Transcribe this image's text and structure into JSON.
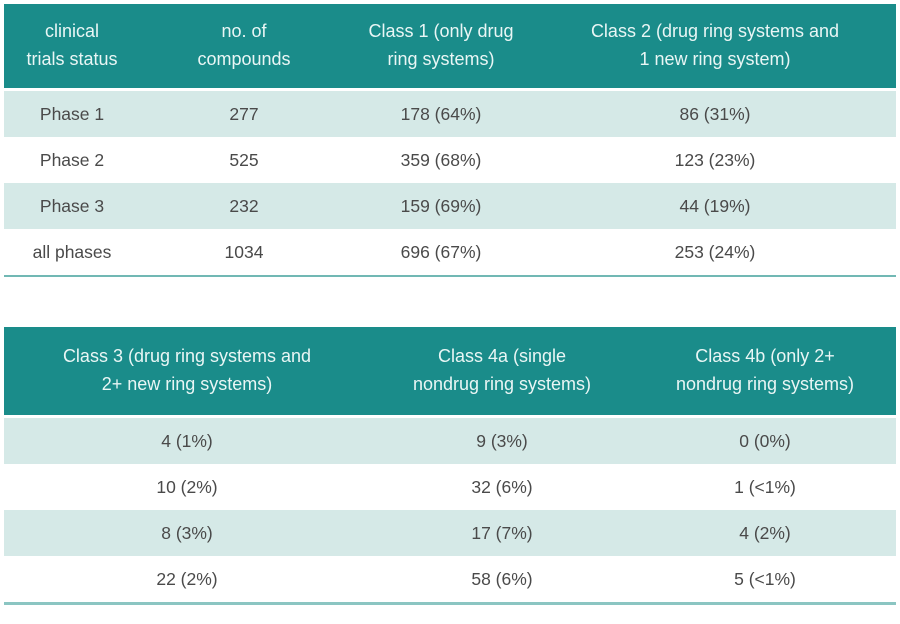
{
  "colors": {
    "header_background": "#1A8C8A",
    "header_text": "#E9F6F5",
    "row_alt_background": "#D5E9E7",
    "row_background": "#FFFFFF",
    "body_text": "#4A4A4A",
    "table1_bottom_border": "#71B8B4",
    "table2_bottom_border": "#8BC5C2"
  },
  "table1": {
    "headers": [
      "clinical\ntrials status",
      "no. of\ncompounds",
      "Class 1 (only drug\nring systems)",
      "Class 2 (drug ring systems and\n1 new ring system)"
    ],
    "rows": [
      [
        "Phase 1",
        "277",
        "178 (64%)",
        "86 (31%)"
      ],
      [
        "Phase 2",
        "525",
        "359 (68%)",
        "123 (23%)"
      ],
      [
        "Phase 3",
        "232",
        "159 (69%)",
        "44 (19%)"
      ],
      [
        "all phases",
        "1034",
        "696 (67%)",
        "253 (24%)"
      ]
    ]
  },
  "table2": {
    "headers": [
      "Class 3 (drug ring systems and\n2+ new ring systems)",
      "Class 4a (single\nnondrug ring systems)",
      "Class 4b (only 2+\nnondrug ring systems)"
    ],
    "rows": [
      [
        "4 (1%)",
        "9 (3%)",
        "0 (0%)"
      ],
      [
        "10 (2%)",
        "32 (6%)",
        "1 (<1%)"
      ],
      [
        "8 (3%)",
        "17 (7%)",
        "4 (2%)"
      ],
      [
        "22 (2%)",
        "58 (6%)",
        "5 (<1%)"
      ]
    ]
  }
}
